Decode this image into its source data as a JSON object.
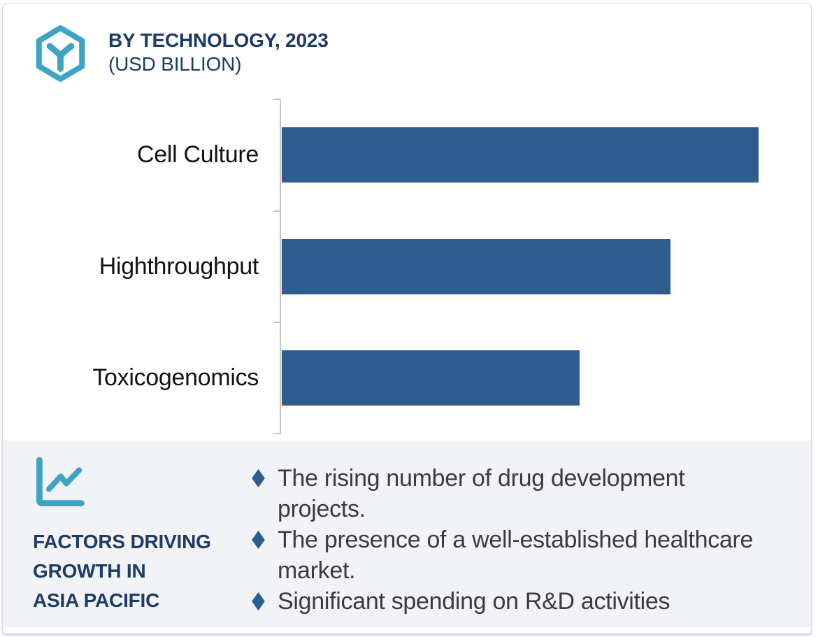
{
  "header": {
    "logo_icon": "hexagon-box-logo-icon",
    "title_line1": "BY TECHNOLOGY, 2023",
    "title_line2": "(USD BILLION)"
  },
  "chart_data": {
    "type": "bar",
    "orientation": "horizontal",
    "title": "BY TECHNOLOGY, 2023 (USD BILLION)",
    "categories": [
      "Cell Culture",
      "Highthroughput",
      "Toxicogenomics"
    ],
    "values": [
      100,
      81.5,
      62.5
    ],
    "value_note": "no numeric axis ticks or data labels are shown; values are relative bar lengths as percent of the longest bar",
    "bar_color": "#2c5d8e",
    "axis_line_color": "#c2c3c5",
    "grid": false,
    "legend": false,
    "data_labels": false
  },
  "factors": {
    "panel_icon": "line-chart-icon",
    "heading_lines": [
      "FACTORS DRIVING",
      "GROWTH IN",
      "ASIA PACIFIC"
    ],
    "bullets": [
      "The rising number of drug development\nprojects.",
      "The presence of a well-established healthcare\nmarket.",
      "Significant spending on R&D activities"
    ],
    "bullet_marker": "diamond",
    "bullet_color": "#2c5d8e"
  },
  "colors": {
    "teal": "#3da4c5",
    "navy": "#1e3a67",
    "bar_blue": "#2c5d8e",
    "band_background": "#f1f3f7",
    "card_border": "#d9dadc",
    "category_text": "#131313",
    "bullet_text": "#3b3b3b"
  }
}
